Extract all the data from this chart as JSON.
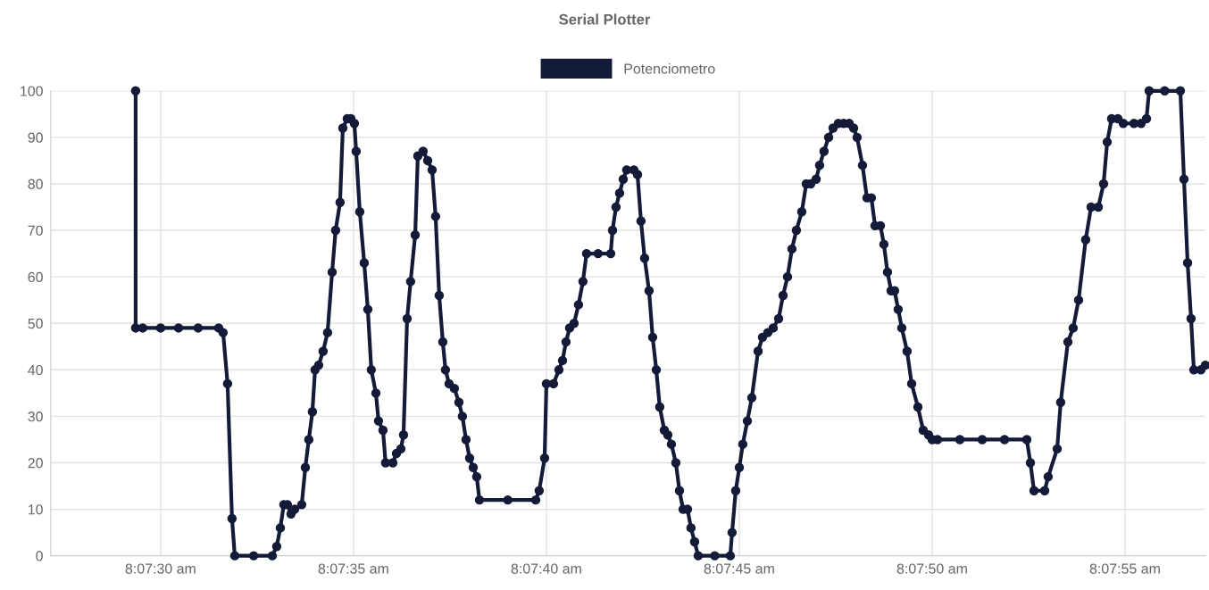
{
  "chart_data": {
    "type": "line",
    "title": "Serial Plotter",
    "xlim": [
      8.124209,
      8.132523
    ],
    "xticks": [
      {
        "value": 8.125,
        "label": "8:07:30 am"
      },
      {
        "value": 8.1263889,
        "label": "8:07:35 am"
      },
      {
        "value": 8.1277778,
        "label": "8:07:40 am"
      },
      {
        "value": 8.1291667,
        "label": "8:07:45 am"
      },
      {
        "value": 8.1305556,
        "label": "8:07:50 am"
      },
      {
        "value": 8.1319444,
        "label": "8:07:55 am"
      }
    ],
    "ylim": [
      0,
      100
    ],
    "yticks": [
      0,
      10,
      20,
      30,
      40,
      50,
      60,
      70,
      80,
      90,
      100
    ],
    "grid": true,
    "legend": "top",
    "marker": "circle",
    "line_style": "solid",
    "series": [
      {
        "name": "Potenciometro",
        "color": "#141b38",
        "x": [
          8.12482,
          8.12482,
          8.124871,
          8.125,
          8.125129,
          8.12527,
          8.125418,
          8.12545,
          8.125482,
          8.125514,
          8.125534,
          8.12567,
          8.125804,
          8.125836,
          8.125862,
          8.125887,
          8.125913,
          8.125939,
          8.125965,
          8.126016,
          8.126042,
          8.126067,
          8.126093,
          8.126112,
          8.126138,
          8.12617,
          8.126202,
          8.126235,
          8.12626,
          8.126292,
          8.126312,
          8.126344,
          8.12637,
          8.126395,
          8.126408,
          8.126434,
          8.126466,
          8.126492,
          8.126517,
          8.12655,
          8.126569,
          8.126601,
          8.12662,
          8.126672,
          8.126698,
          8.12673,
          8.126749,
          8.126775,
          8.1268,
          8.126833,
          8.126852,
          8.12689,
          8.126923,
          8.126955,
          8.12698,
          8.127006,
          8.127032,
          8.127051,
          8.127077,
          8.127115,
          8.127148,
          8.127173,
          8.127199,
          8.127225,
          8.127251,
          8.127276,
          8.127296,
          8.1275,
          8.127701,
          8.127726,
          8.127765,
          8.127778,
          8.127829,
          8.127868,
          8.127894,
          8.127919,
          8.127945,
          8.127977,
          8.128009,
          8.128041,
          8.128067,
          8.12815,
          8.128241,
          8.128254,
          8.128279,
          8.128305,
          8.128331,
          8.128356,
          8.128408,
          8.128434,
          8.128459,
          8.128485,
          8.128517,
          8.128543,
          8.128569,
          8.128594,
          8.128627,
          8.128652,
          8.128678,
          8.12871,
          8.128736,
          8.128762,
          8.128794,
          8.128819,
          8.128845,
          8.128871,
          8.12899,
          8.129102,
          8.129115,
          8.129141,
          8.129167,
          8.129192,
          8.129225,
          8.129257,
          8.129302,
          8.129334,
          8.129372,
          8.129411,
          8.12945,
          8.129482,
          8.129514,
          8.129546,
          8.129578,
          8.129617,
          8.129649,
          8.129681,
          8.12972,
          8.129745,
          8.129777,
          8.12981,
          8.129842,
          8.12988,
          8.129919,
          8.129958,
          8.12999,
          8.130015,
          8.130054,
          8.130086,
          8.130118,
          8.130144,
          8.130183,
          8.130208,
          8.130234,
          8.13026,
          8.130285,
          8.130311,
          8.130337,
          8.130375,
          8.130408,
          8.130453,
          8.130491,
          8.13053,
          8.130556,
          8.130594,
          8.130755,
          8.130916,
          8.131077,
          8.131237,
          8.131263,
          8.131289,
          8.131366,
          8.131391,
          8.131456,
          8.131481,
          8.131533,
          8.131571,
          8.13161,
          8.131661,
          8.1317,
          8.131752,
          8.13179,
          8.131816,
          8.131848,
          8.131893,
          8.131932,
          8.132009,
          8.13206,
          8.132099,
          8.132118,
          8.13223,
          8.132343,
          8.132369,
          8.132395,
          8.13242,
          8.13244,
          8.132491,
          8.132523
        ],
        "values": [
          100,
          49,
          49,
          49,
          49,
          49,
          49,
          48,
          37,
          8,
          0,
          0,
          0,
          2,
          6,
          11,
          11,
          9,
          10,
          11,
          19,
          25,
          31,
          40,
          41,
          44,
          48,
          61,
          70,
          76,
          92,
          94,
          94,
          93,
          87,
          74,
          63,
          53,
          40,
          35,
          29,
          27,
          20,
          20,
          22,
          23,
          26,
          51,
          59,
          69,
          86,
          87,
          85,
          83,
          73,
          56,
          46,
          40,
          37,
          36,
          33,
          30,
          25,
          21,
          19,
          17,
          12,
          12,
          12,
          14,
          21,
          37,
          37,
          40,
          42,
          46,
          49,
          50,
          54,
          59,
          65,
          65,
          65,
          70,
          75,
          78,
          81,
          83,
          83,
          82,
          72,
          64,
          57,
          47,
          40,
          32,
          27,
          26,
          24,
          20,
          14,
          10,
          10,
          6,
          3,
          0,
          0,
          0,
          5,
          14,
          19,
          24,
          29,
          34,
          44,
          47,
          48,
          49,
          51,
          56,
          60,
          66,
          70,
          74,
          80,
          80,
          81,
          84,
          87,
          90,
          92,
          93,
          93,
          93,
          92,
          90,
          84,
          77,
          77,
          71,
          71,
          67,
          61,
          57,
          57,
          53,
          49,
          44,
          37,
          32,
          27,
          26,
          25,
          25,
          25,
          25,
          25,
          25,
          20,
          14,
          14,
          17,
          23,
          33,
          46,
          49,
          55,
          68,
          75,
          75,
          80,
          89,
          94,
          94,
          93,
          93,
          93,
          94,
          100,
          100,
          100,
          81,
          63,
          51,
          40,
          40,
          41
        ]
      }
    ]
  }
}
